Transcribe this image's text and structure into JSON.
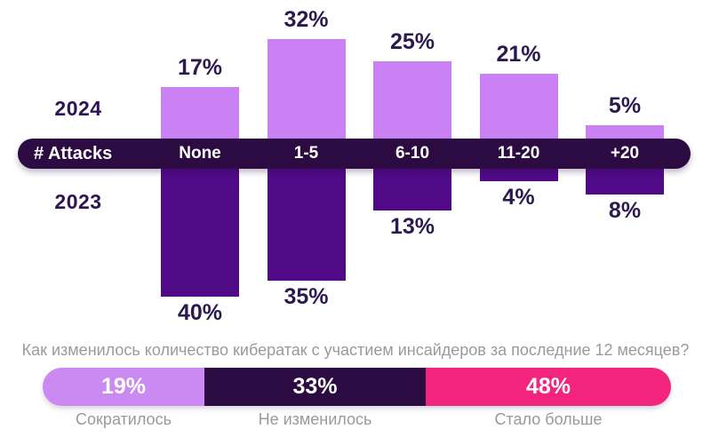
{
  "chart_data": [
    {
      "type": "bar",
      "variant": "diverging-columns",
      "axis_title": "# Attacks",
      "categories": [
        "None",
        "1-5",
        "6-10",
        "11-20",
        "+20"
      ],
      "series": [
        {
          "name": "2024",
          "position": "above",
          "color": "#c981f3",
          "values": [
            17,
            32,
            25,
            21,
            5
          ]
        },
        {
          "name": "2023",
          "position": "below",
          "color": "#500a87",
          "values": [
            40,
            35,
            13,
            4,
            8
          ]
        }
      ],
      "value_suffix": "%",
      "axis_bar_color": "#2b0b41",
      "value_label_color": "#2b1950",
      "legend_position": "left"
    },
    {
      "type": "bar",
      "variant": "stacked-horizontal",
      "title": "Как изменилось количество кибератак с участием инсайдеров за последние 12 месяцев?",
      "value_suffix": "%",
      "segments": [
        {
          "label": "Сократилось",
          "value": 19,
          "color": "#cb8af2"
        },
        {
          "label": "Не изменилось",
          "value": 33,
          "color": "#2b0b41"
        },
        {
          "label": "Стало больше",
          "value": 48,
          "color": "#f2247e"
        }
      ]
    }
  ]
}
